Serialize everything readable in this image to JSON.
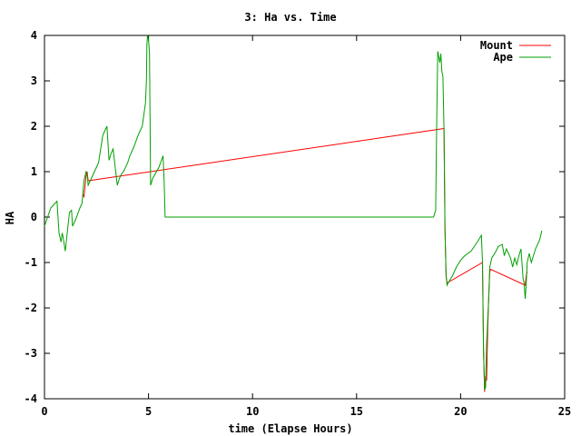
{
  "chart_data": {
    "type": "line",
    "title": "3: Ha vs. Time",
    "xlabel": "time (Elapse Hours)",
    "ylabel": "HA",
    "xlim": [
      0,
      25
    ],
    "ylim": [
      -4,
      4
    ],
    "xticks": [
      0,
      5,
      10,
      15,
      20,
      25
    ],
    "yticks": [
      -4,
      -3,
      -2,
      -1,
      0,
      1,
      2,
      3,
      4
    ],
    "grid": false,
    "legend_position": "top-right",
    "series": [
      {
        "name": "Mount",
        "color": "#ff0000",
        "x": [
          1.85,
          1.9,
          2.0,
          2.05,
          2.1,
          19.2,
          19.25,
          19.3,
          19.35,
          21.05,
          21.1,
          21.15,
          21.2,
          21.25,
          21.3,
          21.35,
          21.4,
          21.45,
          23.1,
          23.15,
          23.2
        ],
        "y": [
          0.5,
          0.45,
          0.9,
          1.0,
          0.8,
          1.95,
          -0.3,
          -1.3,
          -1.45,
          -1.0,
          -2.9,
          -3.85,
          -3.5,
          -3.6,
          -2.5,
          -1.8,
          -1.2,
          -1.15,
          -1.5,
          -1.3,
          -1.2
        ]
      },
      {
        "name": "Ape",
        "color": "#00a000",
        "x": [
          0.0,
          0.3,
          0.6,
          0.7,
          0.8,
          0.85,
          0.9,
          1.0,
          1.2,
          1.3,
          1.35,
          1.5,
          1.7,
          1.8,
          1.9,
          2.0,
          2.05,
          2.1,
          2.2,
          2.3,
          2.4,
          2.5,
          2.6,
          2.8,
          2.9,
          3.0,
          3.1,
          3.2,
          3.3,
          3.5,
          3.6,
          3.7,
          3.8,
          4.0,
          4.1,
          4.3,
          4.5,
          4.7,
          4.85,
          4.9,
          4.92,
          4.95,
          5.0,
          5.05,
          5.1,
          5.2,
          5.5,
          5.7,
          5.75,
          5.8,
          5.9,
          18.7,
          18.8,
          18.85,
          18.9,
          19.0,
          19.05,
          19.1,
          19.15,
          19.2,
          19.25,
          19.3,
          19.35,
          19.4,
          19.6,
          19.8,
          20.0,
          20.2,
          20.5,
          20.8,
          21.0,
          21.05,
          21.1,
          21.15,
          21.2,
          21.25,
          21.35,
          21.4,
          21.5,
          21.7,
          21.8,
          22.0,
          22.1,
          22.2,
          22.4,
          22.5,
          22.6,
          22.7,
          22.8,
          22.9,
          23.0,
          23.05,
          23.1,
          23.15,
          23.2,
          23.3,
          23.4,
          23.6,
          23.8,
          23.9
        ],
        "y": [
          -0.2,
          0.2,
          0.35,
          -0.35,
          -0.55,
          -0.35,
          -0.45,
          -0.75,
          0.1,
          0.15,
          -0.2,
          -0.05,
          0.2,
          0.3,
          0.8,
          1.0,
          0.95,
          0.7,
          0.8,
          0.9,
          1.0,
          1.1,
          1.2,
          1.8,
          1.9,
          2.0,
          1.25,
          1.4,
          1.5,
          0.7,
          0.85,
          0.95,
          1.0,
          1.2,
          1.35,
          1.55,
          1.8,
          2.0,
          2.5,
          3.0,
          3.8,
          4.0,
          3.9,
          3.6,
          0.7,
          0.85,
          1.1,
          1.35,
          0.8,
          0.0,
          0.0,
          0.0,
          0.15,
          2.0,
          3.65,
          3.4,
          3.6,
          3.2,
          3.1,
          1.95,
          -0.3,
          -1.3,
          -1.5,
          -1.45,
          -1.3,
          -1.1,
          -0.95,
          -0.85,
          -0.75,
          -0.55,
          -0.4,
          -1.0,
          -2.9,
          -3.8,
          -3.75,
          -2.8,
          -1.8,
          -1.1,
          -0.9,
          -0.75,
          -0.65,
          -0.6,
          -0.85,
          -0.7,
          -0.9,
          -1.1,
          -0.9,
          -1.05,
          -0.85,
          -0.7,
          -1.35,
          -1.45,
          -1.8,
          -1.5,
          -1.0,
          -0.8,
          -1.0,
          -0.7,
          -0.5,
          -0.3
        ]
      }
    ]
  }
}
